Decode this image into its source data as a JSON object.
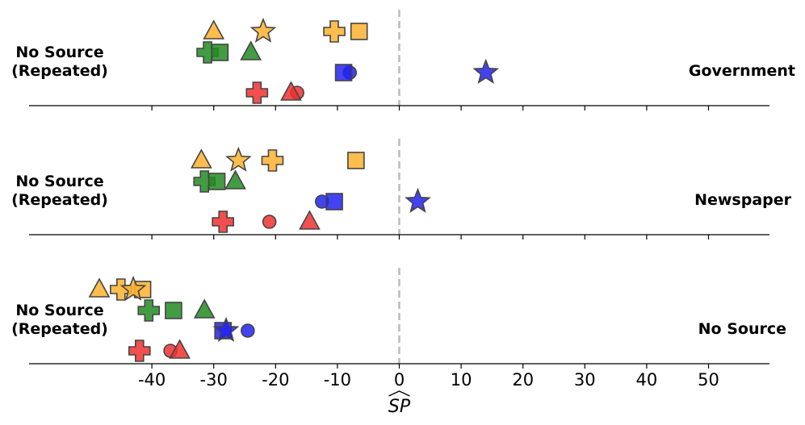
{
  "chart_data": {
    "type": "scatter",
    "xlabel": "SP",
    "xlabel_hat": true,
    "xlim": [
      -60,
      60
    ],
    "xticks": [
      "-40",
      "-30",
      "-20",
      "-10",
      "0",
      "10",
      "20",
      "30",
      "40",
      "50"
    ],
    "xtick_values": [
      -40,
      -30,
      -20,
      -10,
      0,
      10,
      20,
      30,
      40,
      50
    ],
    "reference_line": 0,
    "colors": {
      "orange": "#FFB22E",
      "green": "#228B22",
      "blue": "#2222EE",
      "red": "#F03030",
      "edge": "#444444",
      "dash": "#BBBBBB"
    },
    "left_labels": [
      "No Source",
      "(Repeated)"
    ],
    "panels": [
      {
        "name": "Government",
        "points": [
          {
            "x": -30,
            "row": 0,
            "color": "orange",
            "marker": "triangle"
          },
          {
            "x": -22,
            "row": 0,
            "color": "orange",
            "marker": "star"
          },
          {
            "x": -10.5,
            "row": 0,
            "color": "orange",
            "marker": "plus"
          },
          {
            "x": -6.5,
            "row": 0,
            "color": "orange",
            "marker": "square"
          },
          {
            "x": -31,
            "row": 1,
            "color": "green",
            "marker": "plus"
          },
          {
            "x": -29,
            "row": 1,
            "color": "green",
            "marker": "square"
          },
          {
            "x": -24,
            "row": 1,
            "color": "green",
            "marker": "triangle"
          },
          {
            "x": -8,
            "row": 2,
            "color": "blue",
            "marker": "circle"
          },
          {
            "x": -9,
            "row": 2,
            "color": "blue",
            "marker": "square"
          },
          {
            "x": 14,
            "row": 2,
            "color": "blue",
            "marker": "star"
          },
          {
            "x": -23,
            "row": 3,
            "color": "red",
            "marker": "plus"
          },
          {
            "x": -16.5,
            "row": 3,
            "color": "red",
            "marker": "circle"
          },
          {
            "x": -17.5,
            "row": 3,
            "color": "red",
            "marker": "triangle"
          }
        ]
      },
      {
        "name": "Newspaper",
        "points": [
          {
            "x": -32,
            "row": 0,
            "color": "orange",
            "marker": "triangle"
          },
          {
            "x": -26,
            "row": 0,
            "color": "orange",
            "marker": "star"
          },
          {
            "x": -20.5,
            "row": 0,
            "color": "orange",
            "marker": "plus"
          },
          {
            "x": -7,
            "row": 0,
            "color": "orange",
            "marker": "square"
          },
          {
            "x": -31.5,
            "row": 1,
            "color": "green",
            "marker": "plus"
          },
          {
            "x": -29.5,
            "row": 1,
            "color": "green",
            "marker": "square"
          },
          {
            "x": -26.5,
            "row": 1,
            "color": "green",
            "marker": "triangle"
          },
          {
            "x": -12.5,
            "row": 2,
            "color": "blue",
            "marker": "circle"
          },
          {
            "x": -10.5,
            "row": 2,
            "color": "blue",
            "marker": "square"
          },
          {
            "x": 3,
            "row": 2,
            "color": "blue",
            "marker": "star"
          },
          {
            "x": -28.5,
            "row": 3,
            "color": "red",
            "marker": "plus"
          },
          {
            "x": -21,
            "row": 3,
            "color": "red",
            "marker": "circle"
          },
          {
            "x": -14.5,
            "row": 3,
            "color": "red",
            "marker": "triangle"
          }
        ]
      },
      {
        "name": "No Source",
        "points": [
          {
            "x": -48.5,
            "row": 0,
            "color": "orange",
            "marker": "triangle"
          },
          {
            "x": -45,
            "row": 0,
            "color": "orange",
            "marker": "plus"
          },
          {
            "x": -41.5,
            "row": 0,
            "color": "orange",
            "marker": "square"
          },
          {
            "x": -43,
            "row": 0,
            "color": "orange",
            "marker": "star"
          },
          {
            "x": -40.5,
            "row": 1,
            "color": "green",
            "marker": "plus"
          },
          {
            "x": -36.5,
            "row": 1,
            "color": "green",
            "marker": "square"
          },
          {
            "x": -31.5,
            "row": 1,
            "color": "green",
            "marker": "triangle"
          },
          {
            "x": -28.5,
            "row": 2,
            "color": "blue",
            "marker": "square"
          },
          {
            "x": -24.5,
            "row": 2,
            "color": "blue",
            "marker": "circle"
          },
          {
            "x": -28,
            "row": 2,
            "color": "blue",
            "marker": "star"
          },
          {
            "x": -42,
            "row": 3,
            "color": "red",
            "marker": "plus"
          },
          {
            "x": -37,
            "row": 3,
            "color": "red",
            "marker": "circle"
          },
          {
            "x": -35.5,
            "row": 3,
            "color": "red",
            "marker": "triangle"
          }
        ]
      }
    ]
  }
}
